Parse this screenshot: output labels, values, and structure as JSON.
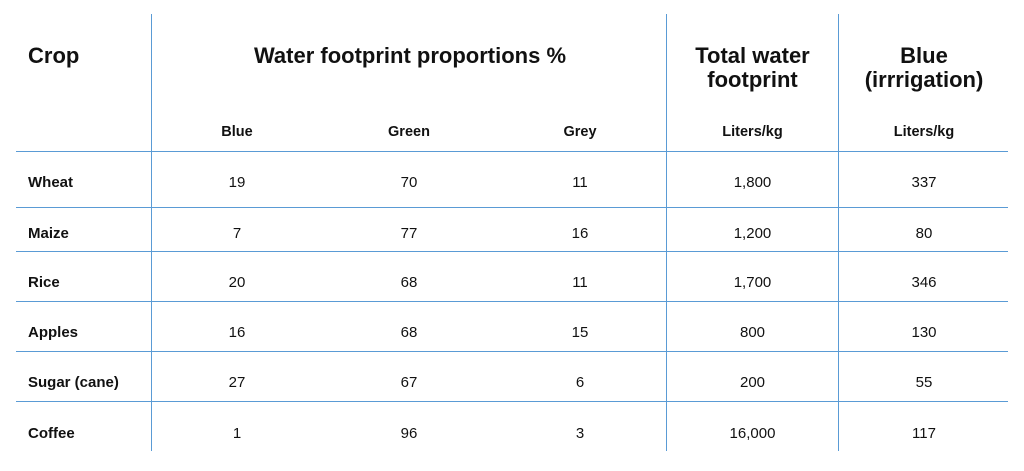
{
  "headers": {
    "crop": "Crop",
    "proportions": "Water footprint proportions %",
    "total_line1": "Total water",
    "total_line2": "footprint",
    "blue_line1": "Blue",
    "blue_line2": "(irrrigation)"
  },
  "subheaders": {
    "blue": "Blue",
    "green": "Green",
    "grey": "Grey",
    "total_unit": "Liters/kg",
    "blue_unit": "Liters/kg"
  },
  "rows": [
    {
      "crop": "Wheat",
      "blue": "19",
      "green": "70",
      "grey": "11",
      "total": "1,800",
      "irrigation": "337"
    },
    {
      "crop": "Maize",
      "blue": "7",
      "green": "77",
      "grey": "16",
      "total": "1,200",
      "irrigation": "80"
    },
    {
      "crop": "Rice",
      "blue": "20",
      "green": "68",
      "grey": "11",
      "total": "1,700",
      "irrigation": "346"
    },
    {
      "crop": "Apples",
      "blue": "16",
      "green": "68",
      "grey": "15",
      "total": "800",
      "irrigation": "130"
    },
    {
      "crop": "Sugar (cane)",
      "blue": "27",
      "green": "67",
      "grey": "6",
      "total": "200",
      "irrigation": "55"
    },
    {
      "crop": "Coffee",
      "blue": "1",
      "green": "96",
      "grey": "3",
      "total": "16,000",
      "irrigation": "117"
    }
  ],
  "colors": {
    "rule": "#5a9bd5",
    "text": "#111111"
  }
}
